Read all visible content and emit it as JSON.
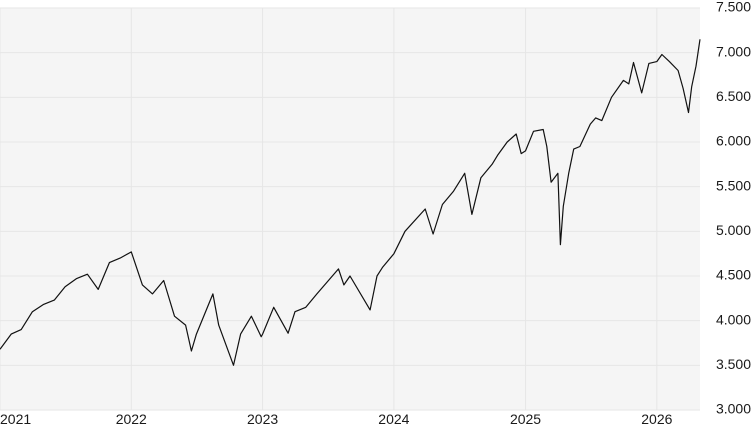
{
  "chart_data": {
    "type": "line",
    "title": "",
    "xlabel": "",
    "ylabel": "",
    "ylim": [
      3000,
      7500
    ],
    "xlim": [
      "2021-01-01",
      "2026-05-01"
    ],
    "grid": true,
    "y_axis_position": "right",
    "background_color": "#f5f5f5",
    "grid_color": "#e6e6e6",
    "line_color": "#111111",
    "x_ticks": [
      "2021",
      "2022",
      "2023",
      "2024",
      "2025",
      "2026"
    ],
    "y_ticks": [
      "3.000",
      "3.500",
      "4.000",
      "4.500",
      "5.000",
      "5.500",
      "6.000",
      "6.500",
      "7.000",
      "7.500"
    ],
    "series": [
      {
        "name": "",
        "points": [
          [
            "2021-01-01",
            3680
          ],
          [
            "2021-02-01",
            3850
          ],
          [
            "2021-03-01",
            3900
          ],
          [
            "2021-04-01",
            4100
          ],
          [
            "2021-05-01",
            4180
          ],
          [
            "2021-06-01",
            4230
          ],
          [
            "2021-07-01",
            4380
          ],
          [
            "2021-08-01",
            4470
          ],
          [
            "2021-09-01",
            4520
          ],
          [
            "2021-10-01",
            4350
          ],
          [
            "2021-11-01",
            4650
          ],
          [
            "2021-12-01",
            4700
          ],
          [
            "2022-01-01",
            4770
          ],
          [
            "2022-02-01",
            4400
          ],
          [
            "2022-03-01",
            4300
          ],
          [
            "2022-04-01",
            4450
          ],
          [
            "2022-05-01",
            4050
          ],
          [
            "2022-06-01",
            3950
          ],
          [
            "2022-06-17",
            3660
          ],
          [
            "2022-07-01",
            3850
          ],
          [
            "2022-08-16",
            4300
          ],
          [
            "2022-09-01",
            3950
          ],
          [
            "2022-10-12",
            3500
          ],
          [
            "2022-11-01",
            3850
          ],
          [
            "2022-12-01",
            4050
          ],
          [
            "2022-12-28",
            3820
          ],
          [
            "2023-01-01",
            3850
          ],
          [
            "2023-02-01",
            4150
          ],
          [
            "2023-03-13",
            3860
          ],
          [
            "2023-04-01",
            4100
          ],
          [
            "2023-05-01",
            4150
          ],
          [
            "2023-06-01",
            4300
          ],
          [
            "2023-07-31",
            4580
          ],
          [
            "2023-08-15",
            4400
          ],
          [
            "2023-09-01",
            4500
          ],
          [
            "2023-10-27",
            4120
          ],
          [
            "2023-11-15",
            4500
          ],
          [
            "2023-12-01",
            4600
          ],
          [
            "2024-01-01",
            4750
          ],
          [
            "2024-02-01",
            5000
          ],
          [
            "2024-03-28",
            5250
          ],
          [
            "2024-04-19",
            4970
          ],
          [
            "2024-05-15",
            5300
          ],
          [
            "2024-06-15",
            5450
          ],
          [
            "2024-07-16",
            5650
          ],
          [
            "2024-08-05",
            5190
          ],
          [
            "2024-08-30",
            5600
          ],
          [
            "2024-09-30",
            5750
          ],
          [
            "2024-10-15",
            5850
          ],
          [
            "2024-11-11",
            6000
          ],
          [
            "2024-12-06",
            6090
          ],
          [
            "2024-12-20",
            5870
          ],
          [
            "2025-01-01",
            5900
          ],
          [
            "2025-01-23",
            6120
          ],
          [
            "2025-02-19",
            6140
          ],
          [
            "2025-03-01",
            5950
          ],
          [
            "2025-03-13",
            5550
          ],
          [
            "2025-04-01",
            5650
          ],
          [
            "2025-04-08",
            4850
          ],
          [
            "2025-04-16",
            5280
          ],
          [
            "2025-05-01",
            5650
          ],
          [
            "2025-05-15",
            5920
          ],
          [
            "2025-06-01",
            5950
          ],
          [
            "2025-06-30",
            6200
          ],
          [
            "2025-07-15",
            6270
          ],
          [
            "2025-08-01",
            6240
          ],
          [
            "2025-08-28",
            6500
          ],
          [
            "2025-09-30",
            6690
          ],
          [
            "2025-10-15",
            6650
          ],
          [
            "2025-10-28",
            6890
          ],
          [
            "2025-11-20",
            6550
          ],
          [
            "2025-12-10",
            6880
          ],
          [
            "2026-01-01",
            6900
          ],
          [
            "2026-01-15",
            6980
          ],
          [
            "2026-02-05",
            6900
          ],
          [
            "2026-03-01",
            6800
          ],
          [
            "2026-03-15",
            6600
          ],
          [
            "2026-03-30",
            6330
          ],
          [
            "2026-04-08",
            6620
          ],
          [
            "2026-04-20",
            6850
          ],
          [
            "2026-05-01",
            7150
          ]
        ]
      }
    ]
  }
}
